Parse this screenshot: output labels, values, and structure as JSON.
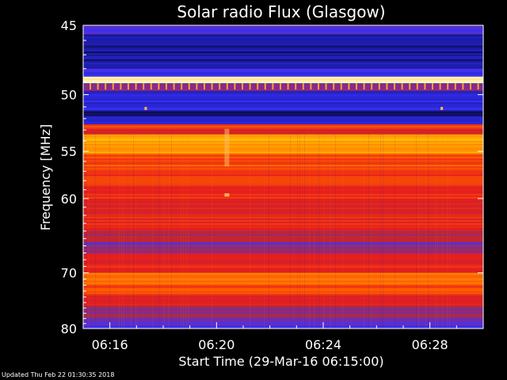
{
  "chart_data": {
    "type": "heatmap",
    "title": "Solar radio Flux (Glasgow)",
    "xlabel": "Start Time (29-Mar-16 06:15:00)",
    "ylabel": "Frequency [MHz]",
    "x_tick_labels": [
      "06:16",
      "06:20",
      "06:24",
      "06:28"
    ],
    "x_tick_minutes": [
      1,
      5,
      9,
      13
    ],
    "xlim_minutes": [
      0,
      15
    ],
    "y_ticks": [
      45,
      50,
      55,
      60,
      70,
      80
    ],
    "ylim": [
      45,
      80
    ],
    "y_scale": "reciprocal",
    "frequency_bands": [
      {
        "from": 45.0,
        "to": 45.6,
        "level": 0.3
      },
      {
        "from": 45.6,
        "to": 48.0,
        "level": 0.12
      },
      {
        "from": 48.0,
        "to": 48.6,
        "level": 0.25
      },
      {
        "from": 48.6,
        "to": 49.1,
        "level": 1.0
      },
      {
        "from": 49.1,
        "to": 49.7,
        "level": 0.35
      },
      {
        "from": 49.7,
        "to": 51.3,
        "level": 0.22
      },
      {
        "from": 51.3,
        "to": 51.8,
        "level": 0.1
      },
      {
        "from": 51.8,
        "to": 52.5,
        "level": 0.2
      },
      {
        "from": 52.5,
        "to": 52.9,
        "level": 0.65
      },
      {
        "from": 52.9,
        "to": 53.4,
        "level": 0.5
      },
      {
        "from": 53.4,
        "to": 55.2,
        "level": 0.82
      },
      {
        "from": 55.2,
        "to": 57.0,
        "level": 0.68
      },
      {
        "from": 57.0,
        "to": 60.0,
        "level": 0.62
      },
      {
        "from": 60.0,
        "to": 62.0,
        "level": 0.55
      },
      {
        "from": 62.0,
        "to": 64.0,
        "level": 0.58
      },
      {
        "from": 64.0,
        "to": 65.5,
        "level": 0.45
      },
      {
        "from": 65.5,
        "to": 67.0,
        "level": 0.38
      },
      {
        "from": 67.0,
        "to": 68.5,
        "level": 0.52
      },
      {
        "from": 68.5,
        "to": 70.0,
        "level": 0.58
      },
      {
        "from": 70.0,
        "to": 72.0,
        "level": 0.74
      },
      {
        "from": 72.0,
        "to": 73.5,
        "level": 0.66
      },
      {
        "from": 73.5,
        "to": 75.5,
        "level": 0.56
      },
      {
        "from": 75.5,
        "to": 78.0,
        "level": 0.4
      },
      {
        "from": 78.0,
        "to": 80.0,
        "level": 0.32
      }
    ],
    "colormap": [
      "#000000",
      "#1e1eb4",
      "#3c32ff",
      "#b4283c",
      "#e61e1e",
      "#ff5a00",
      "#ffb400",
      "#ffffc8"
    ]
  },
  "footer": {
    "updated": "Updated Thu Feb 22 01:30:35 2018"
  }
}
